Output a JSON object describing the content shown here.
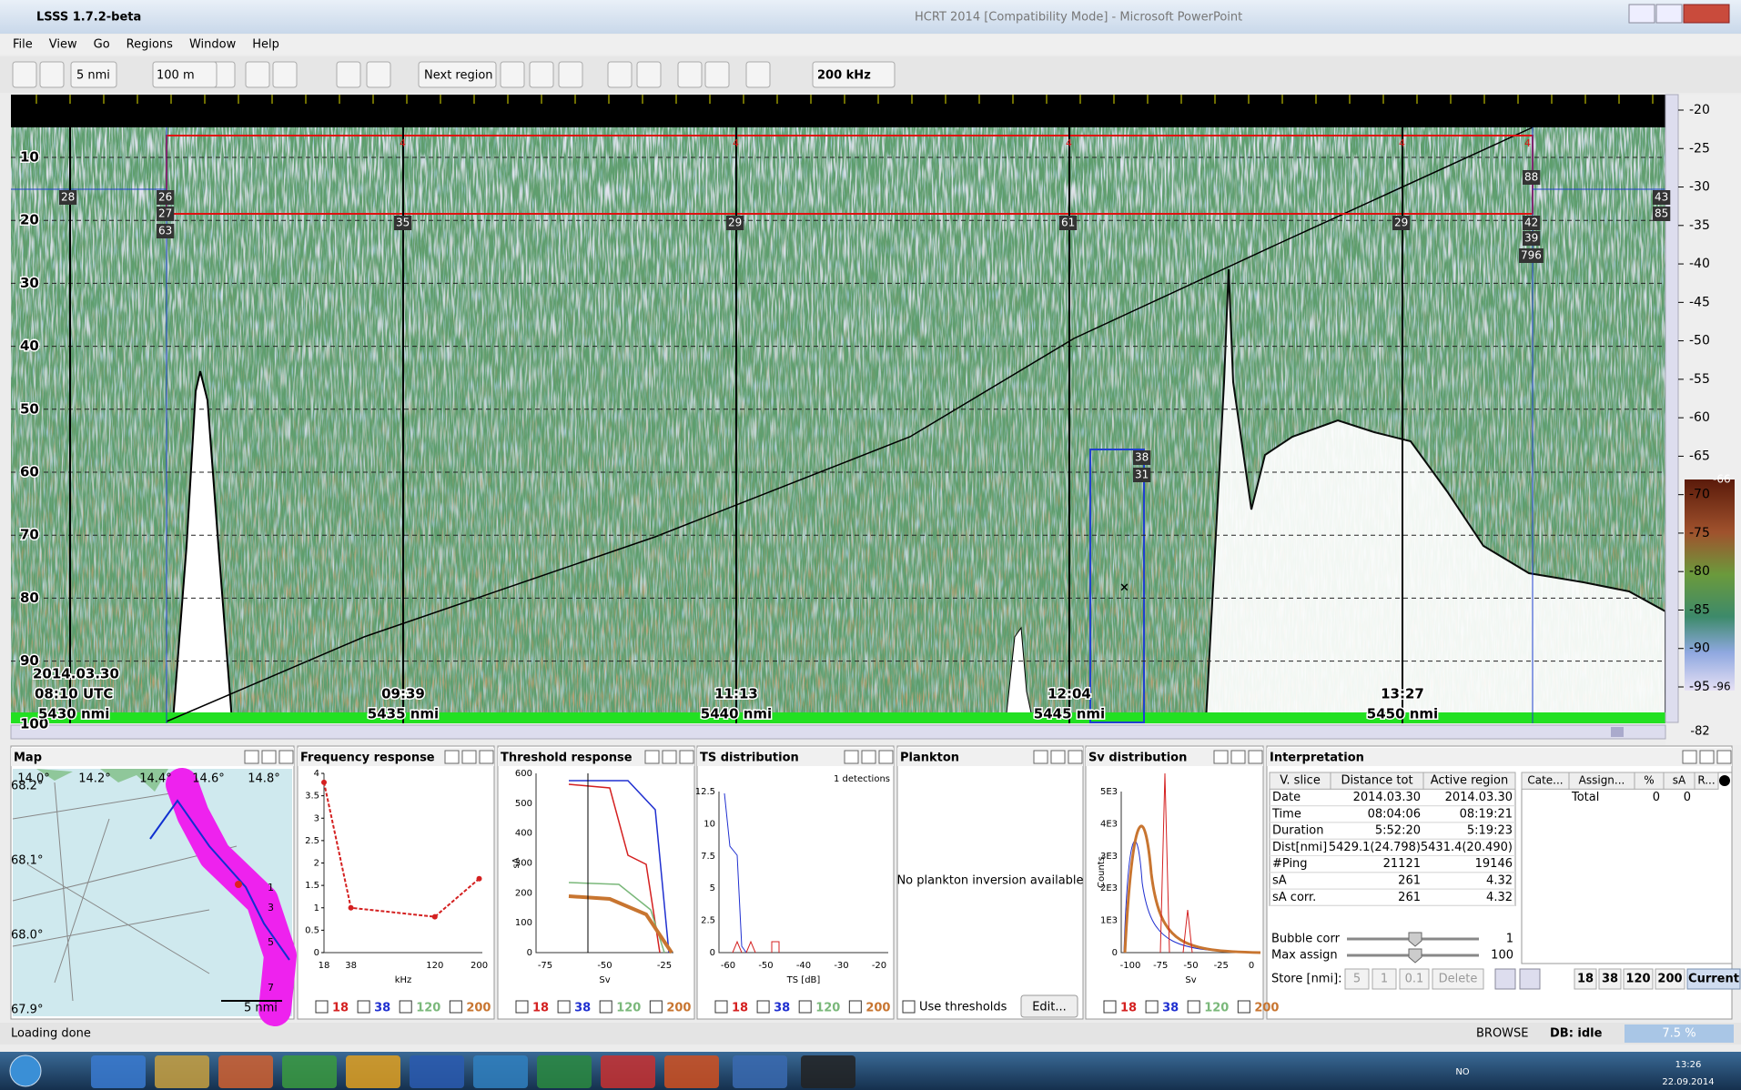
{
  "window": {
    "title": "LSSS 1.7.2-beta",
    "background_title": "HCRT 2014 [Compatibility Mode] - Microsoft PowerPoint"
  },
  "menu": [
    "File",
    "View",
    "Go",
    "Regions",
    "Window",
    "Help"
  ],
  "toolbar": {
    "distance": "5 nmi",
    "range": "100 m",
    "next_region": "Next region",
    "frequency": "200 kHz"
  },
  "echogram": {
    "depths": [
      "10",
      "20",
      "30",
      "40",
      "50",
      "60",
      "70",
      "80",
      "90",
      "100"
    ],
    "sv_scale": [
      "-20",
      "-25",
      "-30",
      "-35",
      "-40",
      "-45",
      "-50",
      "-55",
      "-60",
      "-65",
      "-70",
      "-75",
      "-80",
      "-85",
      "-90",
      "-95"
    ],
    "colorbar_top": "-66",
    "colorbar_bottom": "-96",
    "bottom_value": "-82",
    "date": "2014.03.30",
    "region_id": "4",
    "markers": [
      {
        "time": "08:10 UTC",
        "distance": "5430 nmi"
      },
      {
        "time": "09:39",
        "distance": "5435 nmi"
      },
      {
        "time": "11:13",
        "distance": "5440 nmi"
      },
      {
        "time": "12:04",
        "distance": "5445 nmi"
      },
      {
        "time": "13:27",
        "distance": "5450 nmi"
      }
    ],
    "region_labels": [
      "28",
      "26",
      "27",
      "63",
      "35",
      "29",
      "61",
      "29",
      "42",
      "39",
      "796",
      "88",
      "43",
      "85",
      "38",
      "31"
    ]
  },
  "panels": {
    "frequencies": [
      "18",
      "38",
      "120",
      "200"
    ],
    "map": {
      "title": "Map",
      "longitudes": [
        "14.0°",
        "14.2°",
        "14.4°",
        "14.6°",
        "14.8°"
      ],
      "latitudes": [
        "68.2°",
        "68.1°",
        "68.0°",
        "67.9°"
      ],
      "stations": [
        "1",
        "3",
        "5",
        "7"
      ],
      "scale": "5 nmi"
    },
    "frequency_response": {
      "title": "Frequency response",
      "type": "line",
      "categories": [
        "18",
        "38",
        "120",
        "200"
      ],
      "values": [
        3.8,
        1.0,
        0.8,
        1.65
      ],
      "color": "#d42020",
      "ylim": [
        0,
        4
      ],
      "yticks": [
        0,
        0.5,
        1,
        1.5,
        2,
        2.5,
        3,
        3.5,
        4
      ],
      "xlabel": "kHz"
    },
    "threshold_response": {
      "title": "Threshold response",
      "yticks": [
        "0",
        "100",
        "200",
        "300",
        "400",
        "500",
        "600"
      ],
      "xticks": [
        "-75",
        "-50",
        "-25"
      ],
      "xlabel": "Sv",
      "ylabel": "sA"
    },
    "ts_distribution": {
      "title": "TS distribution",
      "note": "1 detections",
      "yticks": [
        "0",
        "2.5",
        "5",
        "7.5",
        "10",
        "12.5"
      ],
      "xticks": [
        "-60",
        "-50",
        "-40",
        "-30",
        "-20"
      ],
      "xlabel": "TS [dB]"
    },
    "plankton": {
      "title": "Plankton",
      "message": "No plankton inversion available",
      "checkbox": "Use thresholds",
      "button": "Edit..."
    },
    "sv_distribution": {
      "title": "Sv distribution",
      "yticks": [
        "0",
        "1E3",
        "2E3",
        "3E3",
        "4E3",
        "5E3"
      ],
      "xticks": [
        "-100",
        "-75",
        "-50",
        "-25",
        "0"
      ],
      "xlabel": "Sv",
      "ylabel": "Counts"
    }
  },
  "interpretation": {
    "title": "Interpretation",
    "headers": [
      "V. slice",
      "Distance tot",
      "Active region"
    ],
    "rows": [
      [
        "Date",
        "2014.03.30",
        "2014.03.30"
      ],
      [
        "Time",
        "08:04:06",
        "08:19:21"
      ],
      [
        "Duration",
        "5:52:20",
        "5:19:23"
      ],
      [
        "Dist[nmi]",
        "5429.1(24.798)",
        "5431.4(20.490)"
      ],
      [
        "#Ping",
        "21121",
        "19146"
      ],
      [
        "sA",
        "261",
        "4.32"
      ],
      [
        "sA corr.",
        "261",
        "4.32"
      ]
    ],
    "bubble_corr": {
      "label": "Bubble corr",
      "value": "1"
    },
    "max_assign": {
      "label": "Max assign",
      "value": "100"
    },
    "store": {
      "label": "Store [nmi]:",
      "options": [
        "5",
        "1",
        "0.1"
      ],
      "delete": "Delete"
    },
    "current": "Current",
    "category_headers": [
      "Cate...",
      "Assign...",
      "%",
      "sA",
      "R..."
    ],
    "category_row": [
      "Total",
      "0",
      "0"
    ]
  },
  "status": {
    "message": "Loading done",
    "mode": "BROWSE",
    "db": "DB: idle",
    "progress": "7.5 %"
  },
  "taskbar": {
    "language": "NO",
    "time": "13:26",
    "date": "22.09.2014"
  }
}
